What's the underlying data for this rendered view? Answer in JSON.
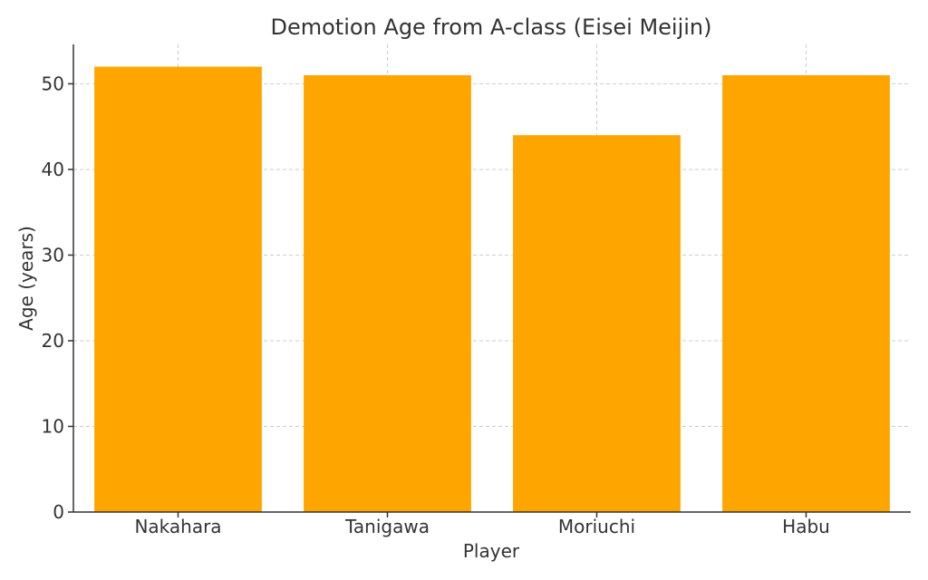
{
  "chart_data": {
    "type": "bar",
    "title": "Demotion Age from A-class (Eisei Meijin)",
    "xlabel": "Player",
    "ylabel": "Age (years)",
    "categories": [
      "Nakahara",
      "Tanigawa",
      "Moriuchi",
      "Habu"
    ],
    "values": [
      52,
      51,
      44,
      51
    ],
    "ylim": [
      0,
      54.6
    ],
    "yticks": [
      0,
      10,
      20,
      30,
      40,
      50
    ],
    "grid": true,
    "bar_color": "#FFA500"
  }
}
